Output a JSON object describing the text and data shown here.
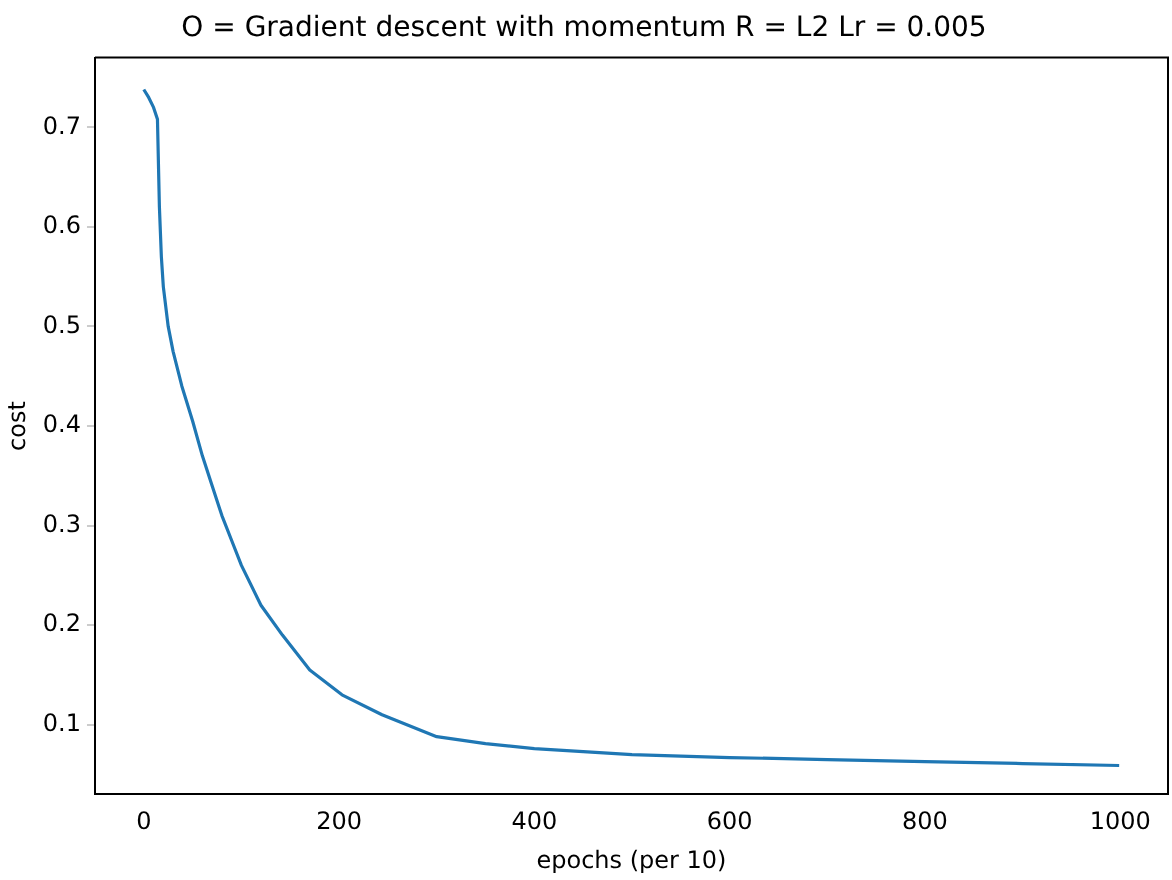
{
  "chart_data": {
    "type": "line",
    "title": "O = Gradient descent with momentum R = L2 Lr = 0.005",
    "xlabel": "epochs (per 10)",
    "ylabel": "cost",
    "x": [
      0,
      5,
      10,
      14,
      16,
      18,
      20,
      25,
      30,
      39,
      50,
      60,
      70,
      80,
      90,
      100,
      120,
      142,
      170,
      203,
      244,
      300,
      350,
      400,
      500,
      600,
      700,
      800,
      900,
      999
    ],
    "series": [
      {
        "color": "#1f77b4",
        "values": [
          0.738,
          0.73,
          0.72,
          0.708,
          0.62,
          0.57,
          0.54,
          0.5,
          0.475,
          0.44,
          0.405,
          0.37,
          0.34,
          0.31,
          0.285,
          0.26,
          0.22,
          0.19,
          0.155,
          0.13,
          0.11,
          0.088,
          0.081,
          0.076,
          0.07,
          0.067,
          0.065,
          0.063,
          0.061,
          0.059
        ]
      }
    ],
    "xlim": [
      -50,
      1049
    ],
    "ylim": [
      0.03,
      0.77
    ],
    "xticks": [
      0,
      200,
      400,
      600,
      800,
      1000
    ],
    "yticks": [
      0.1,
      0.2,
      0.3,
      0.4,
      0.5,
      0.6,
      0.7
    ],
    "grid": false,
    "legend": false,
    "marker": "none",
    "line_style": "solid"
  }
}
